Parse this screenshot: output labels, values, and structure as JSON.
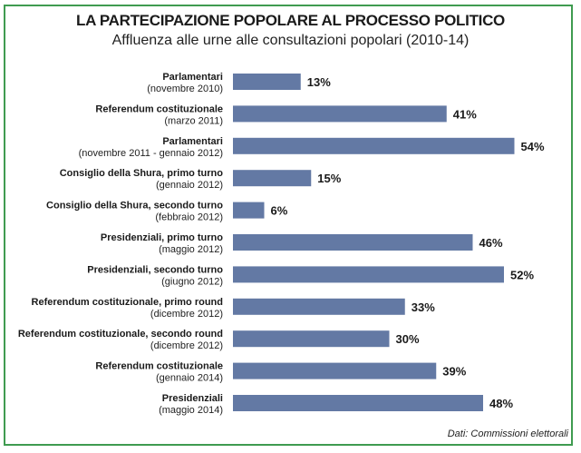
{
  "chart_data": {
    "type": "bar",
    "orientation": "horizontal",
    "title": "LA PARTECIPAZIONE POPOLARE AL PROCESSO POLITICO",
    "subtitle": "Affluenza alle urne alle consultazioni popolari (2010-14)",
    "categories": [
      {
        "name": "Parlamentari",
        "date": "(novembre 2010)"
      },
      {
        "name": "Referendum costituzionale",
        "date": "(marzo 2011)"
      },
      {
        "name": "Parlamentari",
        "date": "(novembre 2011 - gennaio 2012)"
      },
      {
        "name": "Consiglio della Shura, primo turno",
        "date": "(gennaio 2012)"
      },
      {
        "name": "Consiglio della Shura, secondo turno",
        "date": "(febbraio 2012)"
      },
      {
        "name": "Presidenziali, primo turno",
        "date": "(maggio 2012)"
      },
      {
        "name": "Presidenziali, secondo turno",
        "date": "(giugno 2012)"
      },
      {
        "name": "Referendum costituzionale, primo round",
        "date": "(dicembre 2012)"
      },
      {
        "name": "Referendum costituzionale, secondo round",
        "date": "(dicembre 2012)"
      },
      {
        "name": "Referendum costituzionale",
        "date": "(gennaio 2014)"
      },
      {
        "name": "Presidenziali",
        "date": "(maggio 2014)"
      }
    ],
    "values": [
      13,
      41,
      54,
      15,
      6,
      46,
      52,
      33,
      30,
      39,
      48
    ],
    "value_suffix": "%",
    "xlim": [
      0,
      60
    ],
    "grid": false,
    "bar_color": "#6379a4",
    "border_color": "#3f9b50",
    "source": "Dati: Commissioni elettorali"
  }
}
